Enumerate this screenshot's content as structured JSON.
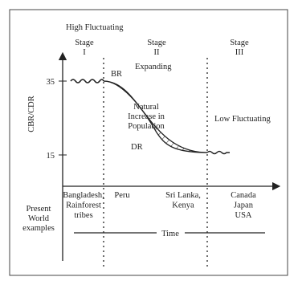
{
  "top_label": "High Fluctuating",
  "stages": [
    {
      "name": "Stage",
      "numeral": "I"
    },
    {
      "name": "Stage",
      "numeral": "II"
    },
    {
      "name": "Stage",
      "numeral": "III"
    }
  ],
  "phase_labels": {
    "expanding": "Expanding",
    "low_fluctuating": "Low Fluctuating"
  },
  "curves": {
    "br": "BR",
    "dr": "DR"
  },
  "area_label": [
    "Natural",
    "Increase in",
    "Population"
  ],
  "y_axis": {
    "label": "CBR/CDR",
    "ticks": [
      "35",
      "15"
    ]
  },
  "x_axis_label": "Time",
  "row_label": [
    "Present",
    "World",
    "examples"
  ],
  "examples": [
    [
      "Bangladesh,",
      "Rainforest",
      "tribes"
    ],
    [
      "Peru"
    ],
    [
      "Sri Lanka,",
      "Kenya"
    ],
    [
      "Canada",
      "Japan",
      "USA"
    ]
  ]
}
